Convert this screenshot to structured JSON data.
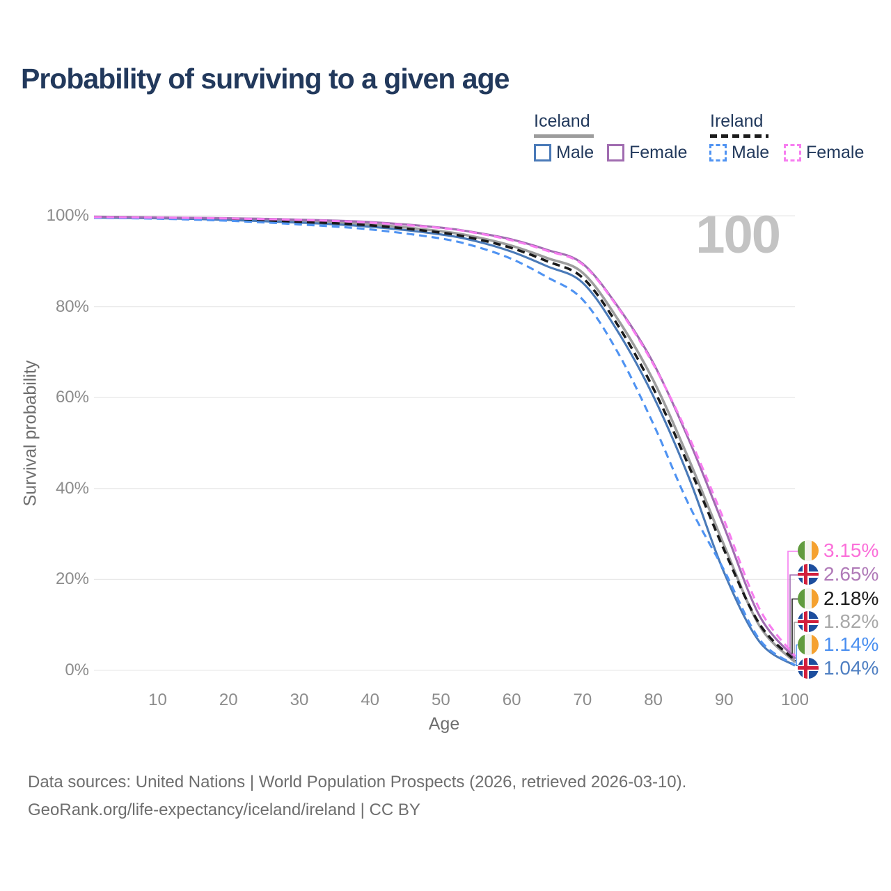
{
  "title": "Probability of surviving to a given age",
  "watermark": "100",
  "legend": {
    "groups": [
      {
        "label": "Iceland",
        "line_style": "solid",
        "underline_color": "#9c9c9c",
        "items": [
          {
            "label": "Male",
            "color": "#4a7ab8"
          },
          {
            "label": "Female",
            "color": "#a06cb0"
          }
        ]
      },
      {
        "label": "Ireland",
        "line_style": "dashed",
        "underline_color": "#1b1b1b",
        "items": [
          {
            "label": "Male",
            "color": "#4f93f2"
          },
          {
            "label": "Female",
            "color": "#f77df0"
          }
        ]
      }
    ]
  },
  "chart_data": {
    "type": "line",
    "title": "Probability of surviving to a given age",
    "xlabel": "Age",
    "ylabel": "Survival probability",
    "xlim": [
      1,
      100
    ],
    "ylim": [
      0,
      100
    ],
    "grid": "horizontal",
    "legend_position": "top-right",
    "x_tick_values": [
      10,
      20,
      30,
      40,
      50,
      60,
      70,
      80,
      90,
      100
    ],
    "x_tick_labels": [
      "10",
      "20",
      "30",
      "40",
      "50",
      "60",
      "70",
      "80",
      "90",
      "100"
    ],
    "y_tick_values": [
      0,
      20,
      40,
      60,
      80,
      100
    ],
    "y_tick_labels": [
      "0%",
      "20%",
      "40%",
      "60%",
      "80%",
      "100%"
    ],
    "x": [
      1,
      10,
      20,
      30,
      40,
      50,
      55,
      60,
      65,
      70,
      75,
      80,
      85,
      90,
      95,
      100
    ],
    "series": [
      {
        "name": "Ireland Female",
        "country": "Ireland",
        "sex": "Female",
        "flag": "ie",
        "color": "#f77df0",
        "label_color": "#fb6fd9",
        "dashed": true,
        "end_label": "3.15%",
        "end_value": 3.15,
        "values": [
          99.7,
          99.6,
          99.4,
          99.1,
          98.5,
          97.3,
          96.2,
          94.6,
          92.3,
          89.3,
          79.8,
          67.3,
          51.5,
          33.0,
          13.5,
          3.15
        ]
      },
      {
        "name": "Iceland Female",
        "country": "Iceland",
        "sex": "Female",
        "flag": "is",
        "color": "#a06cb0",
        "label_color": "#b07ab8",
        "dashed": false,
        "end_label": "2.65%",
        "end_value": 2.65,
        "values": [
          99.8,
          99.65,
          99.45,
          99.15,
          98.6,
          97.4,
          96.3,
          94.8,
          92.5,
          89.5,
          80.0,
          67.6,
          50.8,
          31.5,
          12.0,
          2.65
        ]
      },
      {
        "name": "Ireland Both sexes",
        "country": "Ireland",
        "sex": "Both",
        "flag": "ie",
        "color": "#1a1a1a",
        "label_color": "#1a1a1a",
        "dashed": true,
        "end_label": "2.18%",
        "end_value": 2.18,
        "values": [
          99.65,
          99.5,
          99.2,
          98.7,
          97.9,
          96.3,
          94.9,
          92.9,
          90.0,
          86.4,
          75.9,
          62.0,
          45.0,
          26.5,
          10.2,
          2.18
        ]
      },
      {
        "name": "Iceland Both sexes",
        "country": "Iceland",
        "sex": "Both",
        "flag": "is",
        "color": "#9e9e9e",
        "label_color": "#a8a8a8",
        "dashed": false,
        "end_label": "1.82%",
        "end_value": 1.82,
        "values": [
          99.7,
          99.55,
          99.3,
          98.8,
          98.1,
          96.6,
          95.3,
          93.4,
          90.7,
          87.5,
          77.2,
          63.8,
          46.5,
          27.5,
          9.8,
          1.82
        ]
      },
      {
        "name": "Ireland Male",
        "country": "Ireland",
        "sex": "Male",
        "flag": "ie",
        "color": "#4f93f2",
        "label_color": "#4a8ff0",
        "dashed": true,
        "end_label": "1.14%",
        "end_value": 1.14,
        "values": [
          99.55,
          99.35,
          98.9,
          98.1,
          97.0,
          95.0,
          93.2,
          90.5,
          86.5,
          81.6,
          69.9,
          54.2,
          36.5,
          22.0,
          6.8,
          1.14
        ]
      },
      {
        "name": "Iceland Male",
        "country": "Iceland",
        "sex": "Male",
        "flag": "is",
        "color": "#4a7ab8",
        "label_color": "#4f7fc2",
        "dashed": false,
        "end_label": "1.04%",
        "end_value": 1.04,
        "values": [
          99.6,
          99.45,
          99.1,
          98.5,
          97.6,
          95.9,
          94.4,
          92.1,
          88.9,
          85.3,
          74.5,
          60.3,
          42.5,
          21.5,
          6.3,
          1.04
        ]
      }
    ]
  },
  "footer": {
    "line1": "Data sources: United Nations | World Population Prospects (2026, retrieved 2026-03-10).",
    "line2": "GeoRank.org/life-expectancy/iceland/ireland | CC BY"
  }
}
